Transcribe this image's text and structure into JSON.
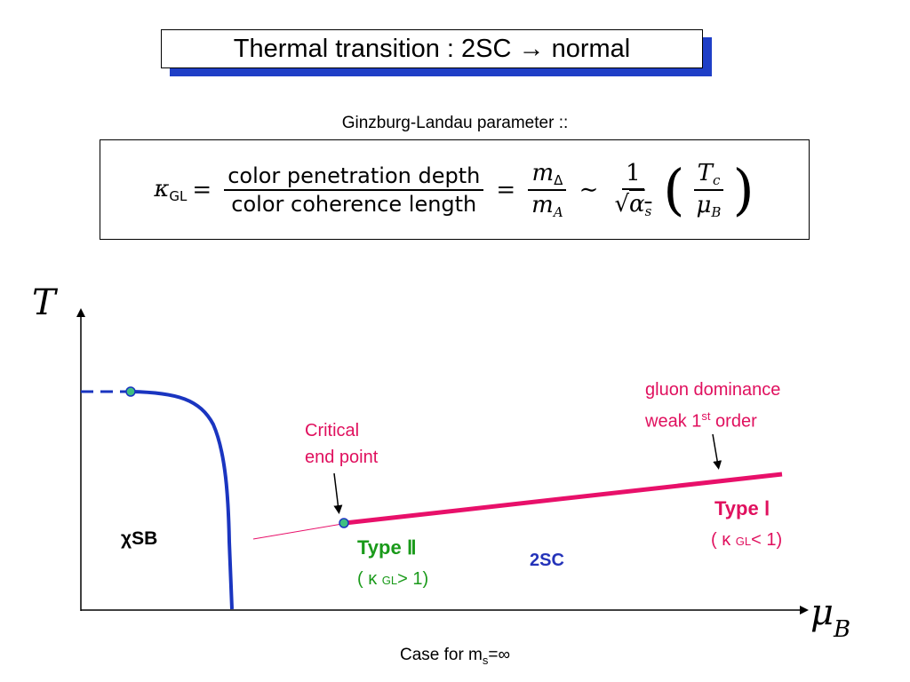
{
  "title": "Thermal transition : 2SC → normal",
  "subtitle": "Ginzburg-Landau parameter ::",
  "equation": {
    "kappa": "κ",
    "kappa_sub": "GL",
    "equals": "=",
    "frac1_num": "color penetration depth",
    "frac1_den": "color coherence length",
    "frac2_num": "m",
    "frac2_num_sub": "Δ",
    "frac2_den": "m",
    "frac2_den_sub": "A",
    "sim": "∼",
    "frac3_num": "1",
    "frac3_den_sqrt": "√",
    "frac3_den": "α",
    "frac3_den_sub": "s",
    "lparen": "(",
    "rparen": ")",
    "frac4_num": "T",
    "frac4_num_sub": "c",
    "frac4_den": "μ",
    "frac4_den_sub": "B"
  },
  "axes": {
    "y_label": "T",
    "x_label": "μ",
    "x_label_sub": "B"
  },
  "labels": {
    "critical_line1": "Critical",
    "critical_line2": "end point",
    "gluon_line1": "gluon dominance",
    "gluon_line2_pre": "weak 1",
    "gluon_line2_sup": "st",
    "gluon_line2_post": " order",
    "chi_sb": "χSB",
    "type2": "Type Ⅱ",
    "type2_cond_pre": "( κ ",
    "type2_cond_sub": "GL",
    "type2_cond_post": "> 1)",
    "sc2": "2SC",
    "type1": "Type Ⅰ",
    "type1_cond_pre": "( κ ",
    "type1_cond_sub": "GL",
    "type1_cond_post": "< 1)",
    "case_pre": "Case for m",
    "case_sub": "s",
    "case_post": "=∞"
  },
  "colors": {
    "chiral_line": "#1a35c0",
    "first_order_line": "#e8106a",
    "endpoint_fill": "#3fbf80",
    "type2_text": "#1a9a1a",
    "sc2_text": "#2433b9"
  }
}
